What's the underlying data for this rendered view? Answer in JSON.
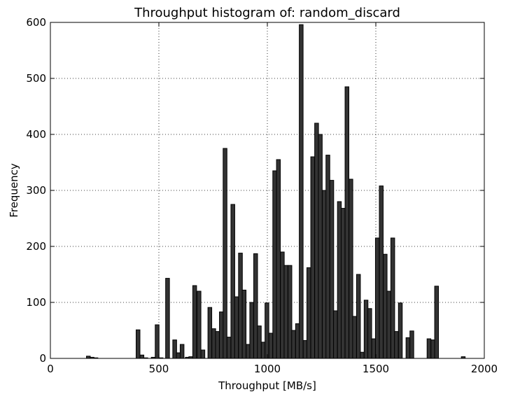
{
  "chart_data": {
    "type": "bar",
    "title": "Throughput histogram of: random_discard",
    "xlabel": "Throughput [MB/s]",
    "ylabel": "Frequency",
    "xlim": [
      0,
      2000
    ],
    "ylim": [
      0,
      600
    ],
    "xticks": [
      0,
      500,
      1000,
      1500,
      2000
    ],
    "yticks": [
      0,
      100,
      200,
      300,
      400,
      500,
      600
    ],
    "grid": true,
    "bar_color": "#333333",
    "bar_edge_color": "#000000",
    "bin_width": 17.6,
    "bins": [
      {
        "x": 175,
        "y": 4
      },
      {
        "x": 192,
        "y": 2
      },
      {
        "x": 210,
        "y": 1
      },
      {
        "x": 404,
        "y": 51
      },
      {
        "x": 422,
        "y": 6
      },
      {
        "x": 440,
        "y": 1
      },
      {
        "x": 474,
        "y": 2
      },
      {
        "x": 492,
        "y": 60
      },
      {
        "x": 510,
        "y": 1
      },
      {
        "x": 540,
        "y": 143
      },
      {
        "x": 573,
        "y": 33
      },
      {
        "x": 590,
        "y": 10
      },
      {
        "x": 607,
        "y": 25
      },
      {
        "x": 631,
        "y": 2
      },
      {
        "x": 647,
        "y": 3
      },
      {
        "x": 665,
        "y": 130
      },
      {
        "x": 685,
        "y": 120
      },
      {
        "x": 703,
        "y": 15
      },
      {
        "x": 735,
        "y": 91
      },
      {
        "x": 753,
        "y": 53
      },
      {
        "x": 770,
        "y": 48
      },
      {
        "x": 788,
        "y": 83
      },
      {
        "x": 805,
        "y": 375
      },
      {
        "x": 823,
        "y": 38
      },
      {
        "x": 841,
        "y": 275
      },
      {
        "x": 858,
        "y": 110
      },
      {
        "x": 876,
        "y": 188
      },
      {
        "x": 893,
        "y": 122
      },
      {
        "x": 911,
        "y": 25
      },
      {
        "x": 928,
        "y": 100
      },
      {
        "x": 946,
        "y": 187
      },
      {
        "x": 963,
        "y": 58
      },
      {
        "x": 981,
        "y": 29
      },
      {
        "x": 998,
        "y": 99
      },
      {
        "x": 1016,
        "y": 45
      },
      {
        "x": 1034,
        "y": 335
      },
      {
        "x": 1051,
        "y": 355
      },
      {
        "x": 1069,
        "y": 190
      },
      {
        "x": 1086,
        "y": 166
      },
      {
        "x": 1104,
        "y": 166
      },
      {
        "x": 1121,
        "y": 50
      },
      {
        "x": 1139,
        "y": 62
      },
      {
        "x": 1156,
        "y": 596
      },
      {
        "x": 1174,
        "y": 32
      },
      {
        "x": 1191,
        "y": 162
      },
      {
        "x": 1209,
        "y": 360
      },
      {
        "x": 1227,
        "y": 420
      },
      {
        "x": 1244,
        "y": 400
      },
      {
        "x": 1262,
        "y": 300
      },
      {
        "x": 1279,
        "y": 363
      },
      {
        "x": 1297,
        "y": 318
      },
      {
        "x": 1314,
        "y": 85
      },
      {
        "x": 1332,
        "y": 280
      },
      {
        "x": 1349,
        "y": 268
      },
      {
        "x": 1367,
        "y": 485
      },
      {
        "x": 1385,
        "y": 320
      },
      {
        "x": 1402,
        "y": 75
      },
      {
        "x": 1420,
        "y": 150
      },
      {
        "x": 1437,
        "y": 11
      },
      {
        "x": 1455,
        "y": 104
      },
      {
        "x": 1472,
        "y": 89
      },
      {
        "x": 1490,
        "y": 35
      },
      {
        "x": 1507,
        "y": 215
      },
      {
        "x": 1525,
        "y": 308
      },
      {
        "x": 1543,
        "y": 186
      },
      {
        "x": 1560,
        "y": 120
      },
      {
        "x": 1578,
        "y": 215
      },
      {
        "x": 1595,
        "y": 48
      },
      {
        "x": 1613,
        "y": 99
      },
      {
        "x": 1648,
        "y": 37
      },
      {
        "x": 1666,
        "y": 49
      },
      {
        "x": 1745,
        "y": 35
      },
      {
        "x": 1763,
        "y": 33
      },
      {
        "x": 1780,
        "y": 129
      },
      {
        "x": 1903,
        "y": 3
      }
    ]
  }
}
